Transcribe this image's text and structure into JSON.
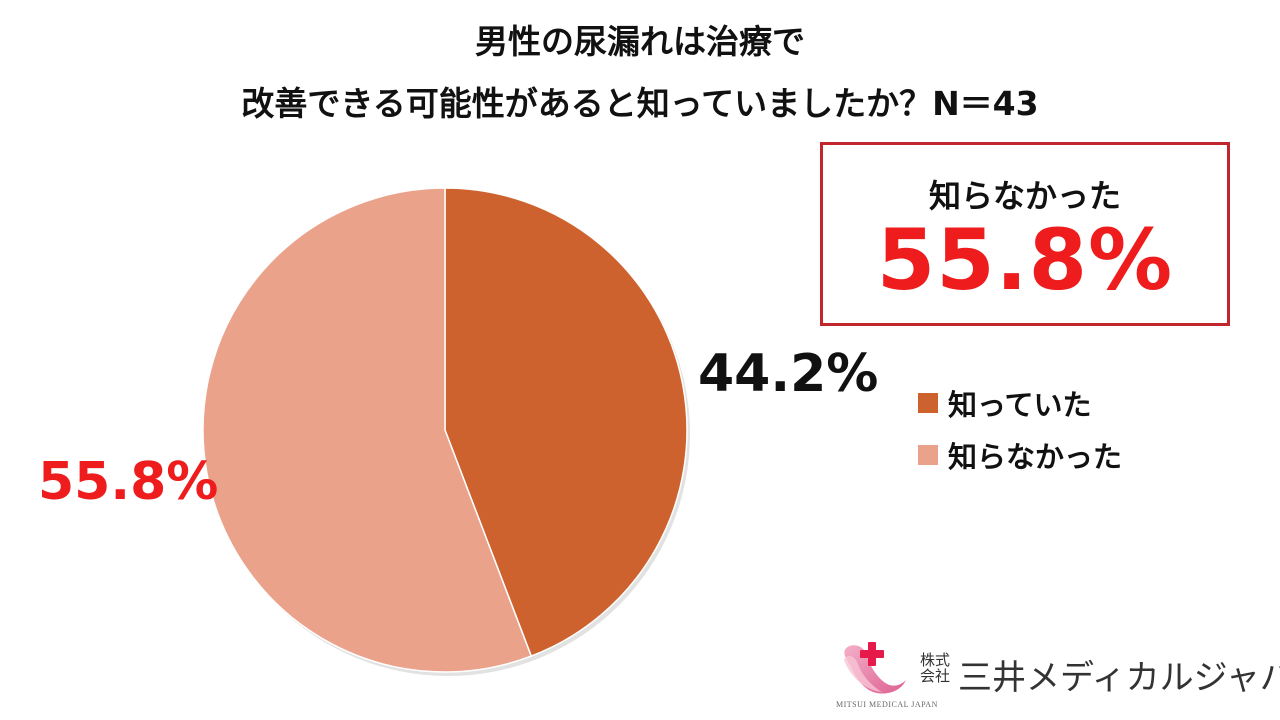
{
  "chart_data": {
    "type": "pie",
    "title_lines": [
      "男性の尿漏れは治療で",
      "改善できる可能性があると知っていましたか？N＝43"
    ],
    "categories": [
      "知っていた",
      "知らなかった"
    ],
    "values": [
      44.2,
      55.8
    ],
    "data_labels": [
      "44.2%",
      "55.8%"
    ],
    "colors": [
      "#cd622e",
      "#eba28b"
    ],
    "label_colors": [
      "#111111",
      "#ee1c1c"
    ],
    "start_angle_deg": 0,
    "direction": "clockwise",
    "legend_position": "right"
  },
  "callout": {
    "label": "知らなかった",
    "value": "55.8%",
    "border_color": "#c0262b",
    "value_color": "#ee1c1c"
  },
  "logo": {
    "prefix": "株式会社",
    "name": "三井メディカルジャパン",
    "sub": "MITSUI MEDICAL JAPAN",
    "icon": "heart-cross-logo"
  }
}
